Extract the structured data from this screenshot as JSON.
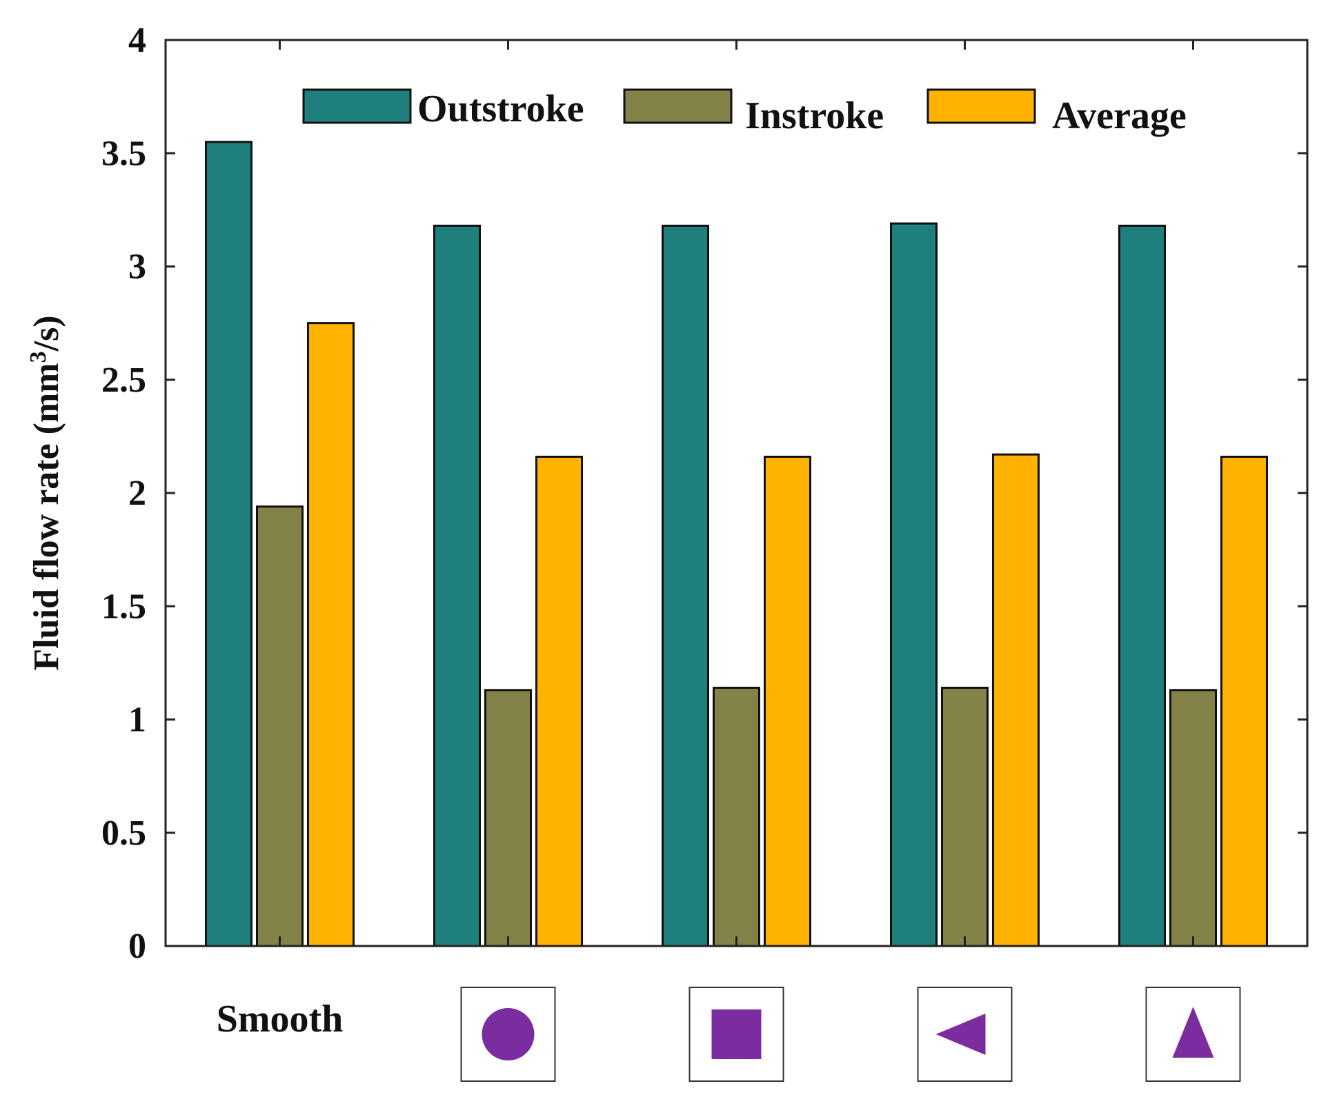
{
  "chart_data": {
    "type": "bar",
    "title": "",
    "xlabel": "",
    "ylabel": "Fluid flow rate (mm",
    "ylabel_superscript": "3",
    "ylabel_suffix": "/s)",
    "ylim": [
      0,
      4
    ],
    "yticks": [
      "0",
      "0.5",
      "1",
      "1.5",
      "2",
      "2.5",
      "3",
      "3.5",
      "4"
    ],
    "grid": false,
    "legend_position": "top",
    "categories": [
      "Smooth",
      "circle",
      "square",
      "left-triangle",
      "up-triangle"
    ],
    "category_labels": [
      {
        "kind": "text",
        "text": "Smooth"
      },
      {
        "kind": "icon",
        "icon": "circle-icon"
      },
      {
        "kind": "icon",
        "icon": "square-icon"
      },
      {
        "kind": "icon",
        "icon": "left-triangle-icon"
      },
      {
        "kind": "icon",
        "icon": "up-triangle-icon"
      }
    ],
    "series": [
      {
        "name": "Outstroke",
        "color": "#1f7f7d",
        "values": [
          3.55,
          3.18,
          3.18,
          3.19,
          3.18
        ]
      },
      {
        "name": "Instroke",
        "color": "#838248",
        "values": [
          1.94,
          1.13,
          1.14,
          1.14,
          1.13
        ]
      },
      {
        "name": "Average",
        "color": "#ffb200",
        "values": [
          2.75,
          2.16,
          2.16,
          2.17,
          2.16
        ]
      }
    ],
    "icon_color": "#7b2d9f"
  }
}
